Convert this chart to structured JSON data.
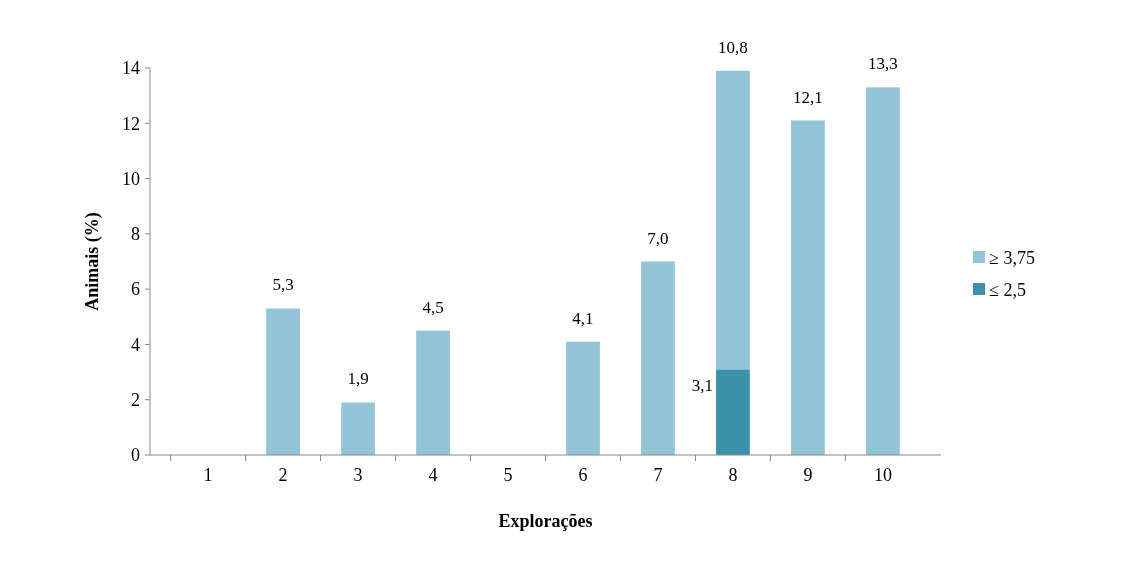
{
  "chart_data": {
    "type": "bar",
    "stacked": true,
    "xlabel": "Explorações",
    "ylabel": "Animais (%)",
    "categories": [
      "1",
      "2",
      "3",
      "4",
      "5",
      "6",
      "7",
      "8",
      "9",
      "10"
    ],
    "series": [
      {
        "name": "≤ 2,5",
        "color": "#3b90aa",
        "values": [
          0,
          0,
          0,
          0,
          0,
          0,
          0,
          3.1,
          0,
          0
        ],
        "value_labels": [
          null,
          null,
          null,
          null,
          null,
          null,
          null,
          "3,1",
          null,
          null
        ]
      },
      {
        "name": "≥ 3,75",
        "color": "#93c4d7",
        "values": [
          0,
          5.3,
          1.9,
          4.5,
          0,
          4.1,
          7.0,
          10.8,
          12.1,
          13.3
        ],
        "value_labels": [
          null,
          "5,3",
          "1,9",
          "4,5",
          null,
          "4,1",
          "7,0",
          "10,8",
          "12,1",
          "13,3"
        ]
      }
    ],
    "ylim": [
      0,
      14
    ],
    "yticks": [
      0,
      2,
      4,
      6,
      8,
      10,
      12,
      14
    ],
    "grid": false,
    "legend": "right"
  }
}
